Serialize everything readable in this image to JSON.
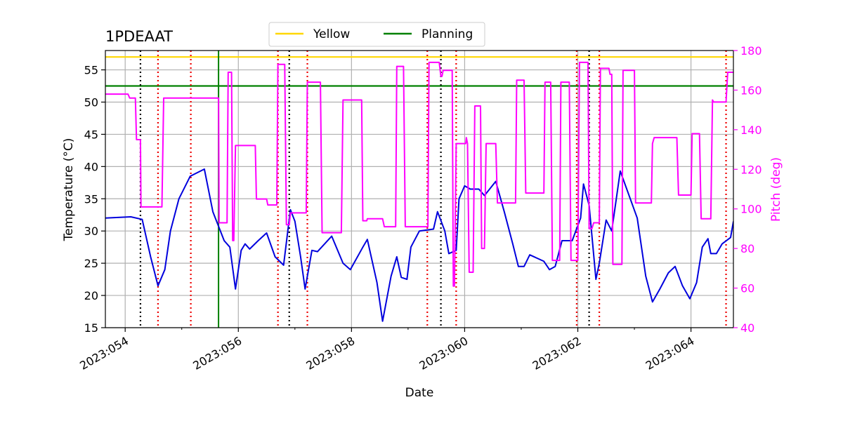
{
  "chart_data": {
    "type": "line",
    "title": "1PDEAAT",
    "xlabel": "Date",
    "ylabel_left": "Temperature ($^\\circ$C)",
    "ylabel_left_display": "Temperature (°C)",
    "ylabel_right": "Pitch (deg)",
    "xlim": [
      53.65,
      64.75
    ],
    "ylim_left": [
      15,
      58
    ],
    "ylim_right": [
      40,
      180
    ],
    "x_ticks": [
      {
        "value": 54,
        "label": "2023:054"
      },
      {
        "value": 56,
        "label": "2023:056"
      },
      {
        "value": 58,
        "label": "2023:058"
      },
      {
        "value": 60,
        "label": "2023:060"
      },
      {
        "value": 62,
        "label": "2023:062"
      },
      {
        "value": 64,
        "label": "2023:064"
      }
    ],
    "y_left_ticks": [
      15,
      20,
      25,
      30,
      35,
      40,
      45,
      50,
      55
    ],
    "y_right_ticks": [
      40,
      60,
      80,
      100,
      120,
      140,
      160,
      180
    ],
    "grid": true,
    "legend": {
      "placement": "top-center",
      "entries": [
        {
          "label": "Yellow",
          "color": "#ffd700"
        },
        {
          "label": "Planning",
          "color": "#008000"
        }
      ]
    },
    "limit_lines": [
      {
        "name": "Yellow",
        "axis": "left",
        "value": 57,
        "color": "#ffd700"
      },
      {
        "name": "Planning",
        "axis": "left",
        "value": 52.5,
        "color": "#008000"
      }
    ],
    "event_lines": {
      "black_dotted": [
        54.27,
        56.9,
        59.58,
        62.2
      ],
      "red_dotted": [
        54.58,
        55.16,
        56.7,
        57.22,
        59.34,
        59.85,
        61.98,
        62.38,
        64.62
      ],
      "green_solid": [
        55.65
      ]
    },
    "series": [
      {
        "name": "Temperature",
        "axis": "left",
        "color": "#0000dd",
        "points": [
          [
            53.65,
            32
          ],
          [
            54.1,
            32.2
          ],
          [
            54.3,
            31.8
          ],
          [
            54.45,
            26
          ],
          [
            54.58,
            21.5
          ],
          [
            54.7,
            24
          ],
          [
            54.8,
            30
          ],
          [
            54.95,
            35
          ],
          [
            55.15,
            38.5
          ],
          [
            55.4,
            39.6
          ],
          [
            55.55,
            33
          ],
          [
            55.75,
            28.5
          ],
          [
            55.85,
            27.5
          ],
          [
            55.95,
            21
          ],
          [
            56.05,
            27
          ],
          [
            56.12,
            28
          ],
          [
            56.2,
            27.2
          ],
          [
            56.35,
            28.5
          ],
          [
            56.5,
            29.7
          ],
          [
            56.65,
            26
          ],
          [
            56.8,
            24.7
          ],
          [
            56.92,
            33.3
          ],
          [
            57.0,
            31.5
          ],
          [
            57.1,
            26
          ],
          [
            57.18,
            21
          ],
          [
            57.3,
            27
          ],
          [
            57.4,
            26.8
          ],
          [
            57.65,
            29.2
          ],
          [
            57.85,
            25
          ],
          [
            57.98,
            24
          ],
          [
            58.2,
            27.5
          ],
          [
            58.28,
            28.7
          ],
          [
            58.45,
            22
          ],
          [
            58.55,
            16
          ],
          [
            58.7,
            23
          ],
          [
            58.8,
            26
          ],
          [
            58.88,
            22.8
          ],
          [
            58.98,
            22.5
          ],
          [
            59.05,
            27.5
          ],
          [
            59.2,
            30
          ],
          [
            59.45,
            30.3
          ],
          [
            59.52,
            33
          ],
          [
            59.65,
            30
          ],
          [
            59.72,
            26.5
          ],
          [
            59.85,
            27
          ],
          [
            59.9,
            35
          ],
          [
            60.0,
            37
          ],
          [
            60.1,
            36.5
          ],
          [
            60.25,
            36.5
          ],
          [
            60.35,
            35.5
          ],
          [
            60.55,
            37.7
          ],
          [
            60.7,
            33
          ],
          [
            60.85,
            28
          ],
          [
            60.95,
            24.5
          ],
          [
            61.05,
            24.5
          ],
          [
            61.15,
            26.3
          ],
          [
            61.4,
            25.3
          ],
          [
            61.5,
            24
          ],
          [
            61.6,
            24.5
          ],
          [
            61.72,
            28.5
          ],
          [
            61.9,
            28.5
          ],
          [
            62.05,
            32
          ],
          [
            62.1,
            37.3
          ],
          [
            62.2,
            34
          ],
          [
            62.32,
            22.5
          ],
          [
            62.38,
            25
          ],
          [
            62.5,
            31.7
          ],
          [
            62.6,
            30
          ],
          [
            62.75,
            39.3
          ],
          [
            63.05,
            32
          ],
          [
            63.2,
            23
          ],
          [
            63.32,
            19
          ],
          [
            63.45,
            21
          ],
          [
            63.6,
            23.5
          ],
          [
            63.72,
            24.5
          ],
          [
            63.85,
            21.5
          ],
          [
            63.98,
            19.5
          ],
          [
            64.1,
            22
          ],
          [
            64.2,
            27.5
          ],
          [
            64.3,
            28.8
          ],
          [
            64.35,
            26.5
          ],
          [
            64.45,
            26.5
          ],
          [
            64.55,
            28
          ],
          [
            64.7,
            29
          ],
          [
            64.75,
            31.5
          ]
        ]
      },
      {
        "name": "Pitch",
        "axis": "right",
        "color": "#ff00ff",
        "points": [
          [
            53.65,
            158
          ],
          [
            54.05,
            158
          ],
          [
            54.08,
            156
          ],
          [
            54.18,
            156
          ],
          [
            54.2,
            135
          ],
          [
            54.27,
            135
          ],
          [
            54.28,
            101
          ],
          [
            54.65,
            101
          ],
          [
            54.68,
            156
          ],
          [
            55.65,
            156
          ],
          [
            55.66,
            93
          ],
          [
            55.8,
            93
          ],
          [
            55.82,
            169
          ],
          [
            55.88,
            169
          ],
          [
            55.9,
            84
          ],
          [
            55.92,
            84
          ],
          [
            55.95,
            132
          ],
          [
            56.3,
            132
          ],
          [
            56.32,
            105
          ],
          [
            56.5,
            105
          ],
          [
            56.52,
            102
          ],
          [
            56.68,
            102
          ],
          [
            56.7,
            173
          ],
          [
            56.82,
            173
          ],
          [
            56.85,
            92
          ],
          [
            56.9,
            92
          ],
          [
            56.92,
            98
          ],
          [
            57.2,
            98
          ],
          [
            57.22,
            164
          ],
          [
            57.45,
            164
          ],
          [
            57.48,
            88
          ],
          [
            57.82,
            88
          ],
          [
            57.85,
            155
          ],
          [
            58.18,
            155
          ],
          [
            58.2,
            94
          ],
          [
            58.27,
            94
          ],
          [
            58.28,
            95
          ],
          [
            58.55,
            95
          ],
          [
            58.58,
            91
          ],
          [
            58.78,
            91
          ],
          [
            58.8,
            172
          ],
          [
            58.92,
            172
          ],
          [
            58.95,
            91
          ],
          [
            59.35,
            91
          ],
          [
            59.37,
            174
          ],
          [
            59.55,
            174
          ],
          [
            59.58,
            167
          ],
          [
            59.6,
            167
          ],
          [
            59.62,
            170
          ],
          [
            59.78,
            170
          ],
          [
            59.8,
            61
          ],
          [
            59.82,
            61
          ],
          [
            59.85,
            133
          ],
          [
            60.02,
            133
          ],
          [
            60.03,
            136
          ],
          [
            60.05,
            133
          ],
          [
            60.08,
            68
          ],
          [
            60.15,
            68
          ],
          [
            60.18,
            152
          ],
          [
            60.28,
            152
          ],
          [
            60.3,
            80
          ],
          [
            60.35,
            80
          ],
          [
            60.38,
            133
          ],
          [
            60.55,
            133
          ],
          [
            60.58,
            103
          ],
          [
            60.9,
            103
          ],
          [
            60.92,
            165
          ],
          [
            61.05,
            165
          ],
          [
            61.08,
            108
          ],
          [
            61.4,
            108
          ],
          [
            61.42,
            164
          ],
          [
            61.52,
            164
          ],
          [
            61.55,
            74
          ],
          [
            61.68,
            74
          ],
          [
            61.7,
            164
          ],
          [
            61.85,
            164
          ],
          [
            61.88,
            74
          ],
          [
            62.0,
            74
          ],
          [
            62.03,
            174
          ],
          [
            62.18,
            174
          ],
          [
            62.2,
            90
          ],
          [
            62.25,
            90
          ],
          [
            62.28,
            93
          ],
          [
            62.38,
            93
          ],
          [
            62.4,
            171
          ],
          [
            62.55,
            171
          ],
          [
            62.57,
            168
          ],
          [
            62.6,
            168
          ],
          [
            62.62,
            72
          ],
          [
            62.78,
            72
          ],
          [
            62.8,
            170
          ],
          [
            63.0,
            170
          ],
          [
            63.02,
            103
          ],
          [
            63.3,
            103
          ],
          [
            63.32,
            133
          ],
          [
            63.35,
            136
          ],
          [
            63.75,
            136
          ],
          [
            63.78,
            107
          ],
          [
            64.0,
            107
          ],
          [
            64.02,
            138
          ],
          [
            64.15,
            138
          ],
          [
            64.18,
            95
          ],
          [
            64.35,
            95
          ],
          [
            64.38,
            155
          ],
          [
            64.4,
            154
          ],
          [
            64.62,
            154
          ],
          [
            64.65,
            169
          ],
          [
            64.75,
            169
          ]
        ]
      }
    ]
  }
}
